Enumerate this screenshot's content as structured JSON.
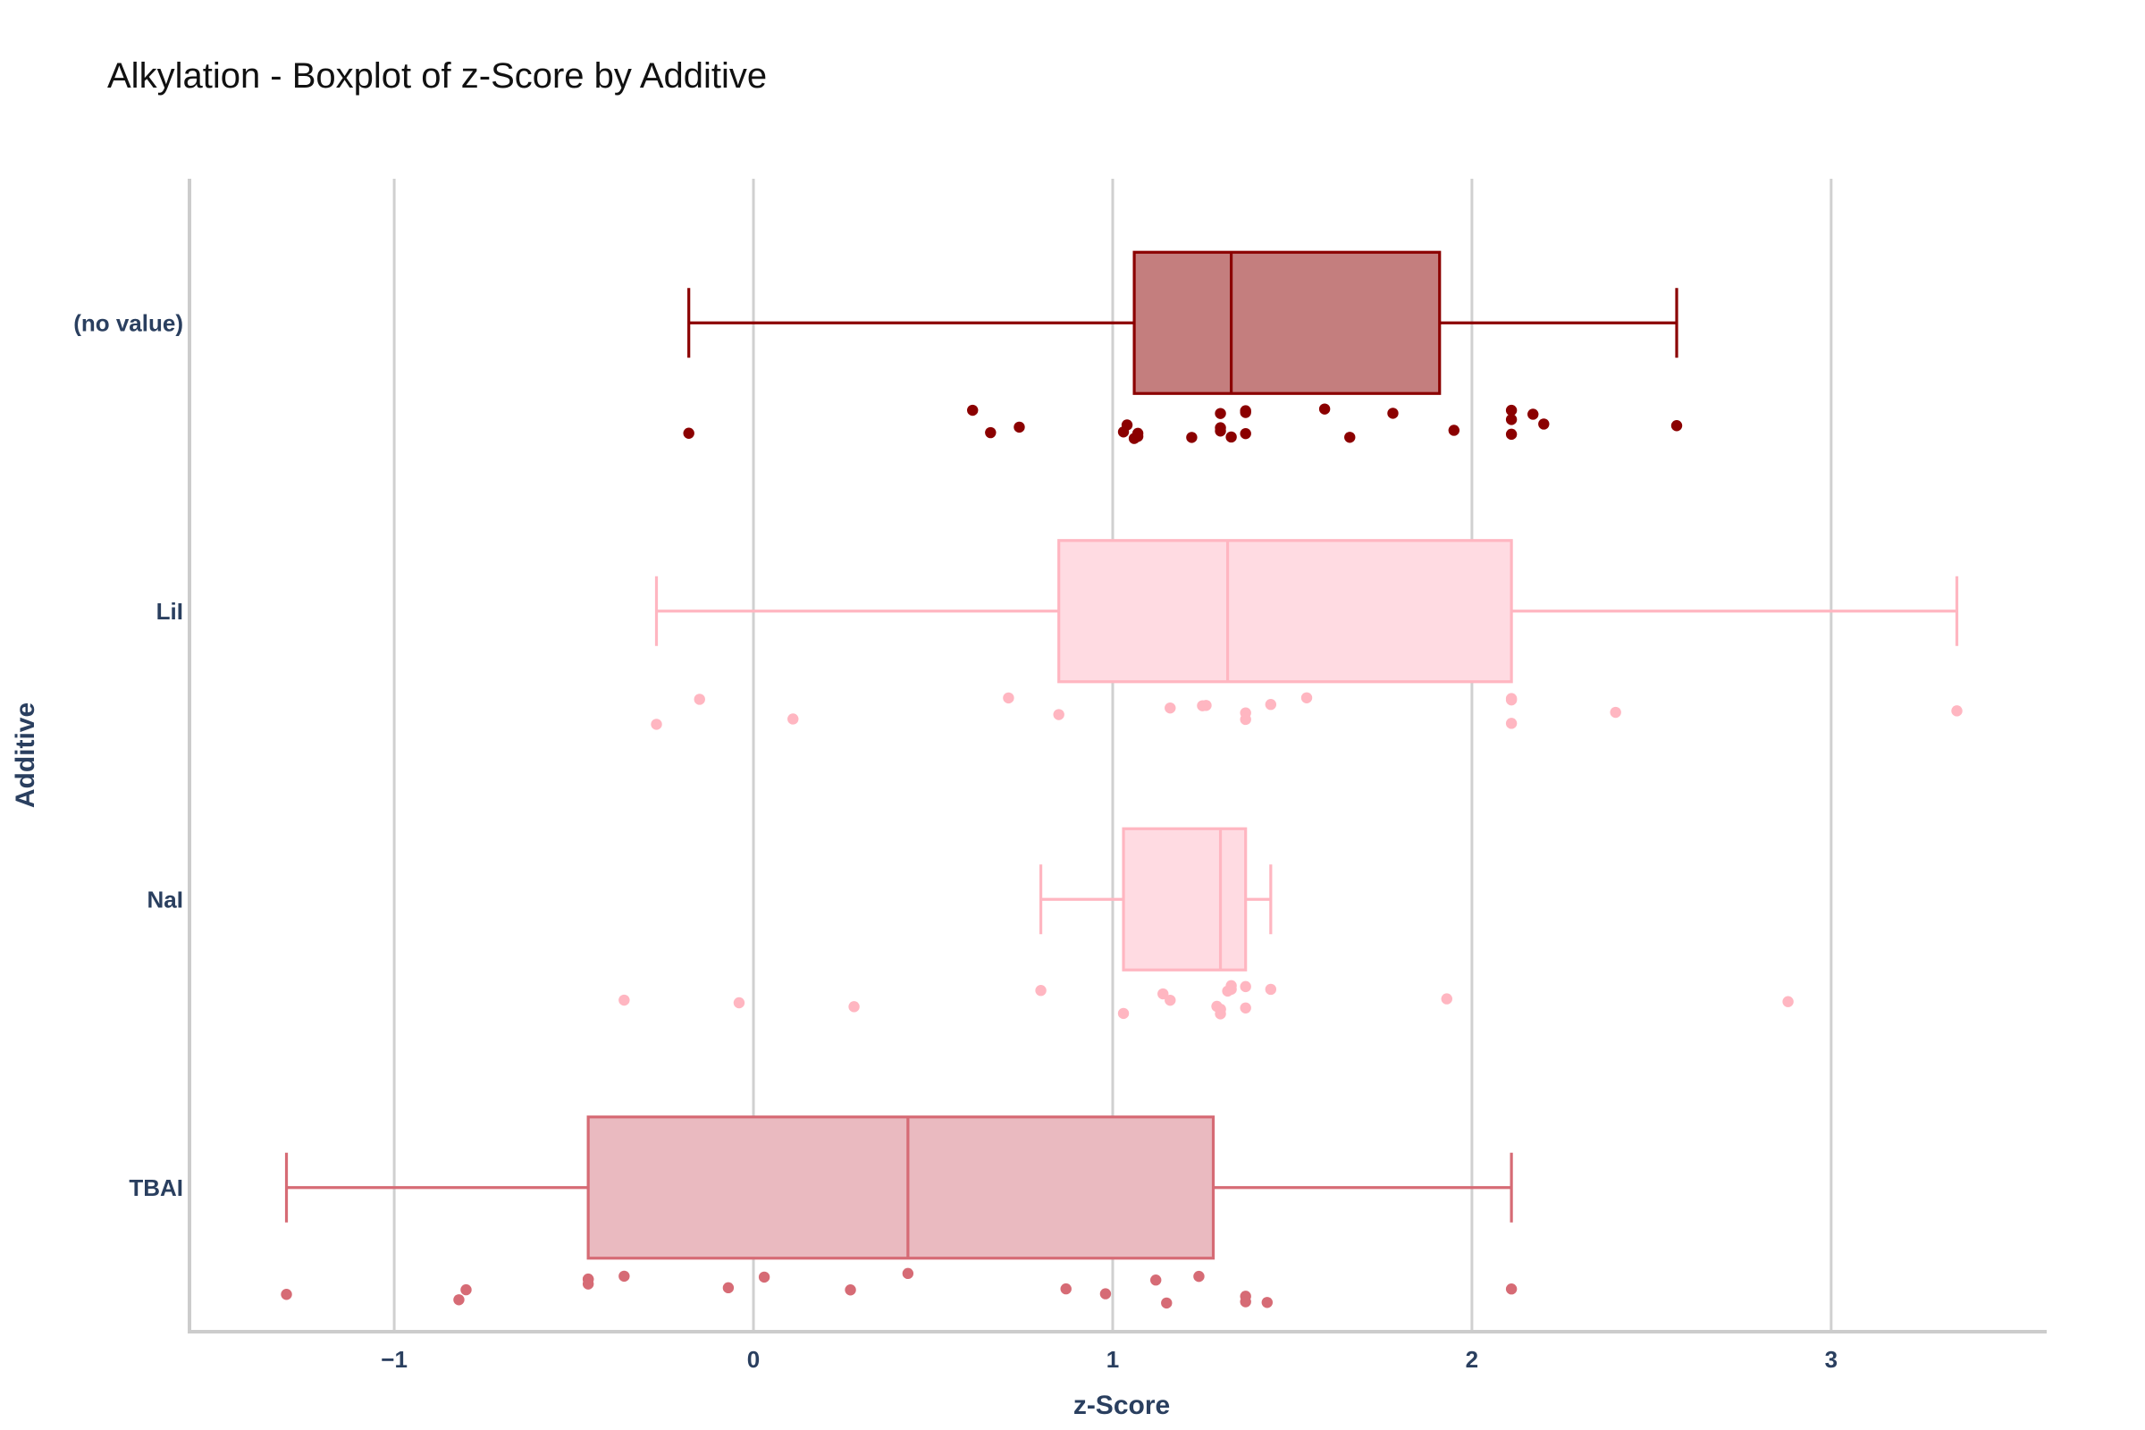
{
  "chart_data": {
    "type": "box",
    "orientation": "horizontal",
    "title": "Alkylation - Boxplot of z-Score by Additive",
    "xlabel": "z-Score",
    "ylabel": "Additive",
    "xlim": [
      -1.57,
      3.6
    ],
    "xticks": [
      -1,
      0,
      1,
      2,
      3
    ],
    "xtick_labels": [
      "−1",
      "0",
      "1",
      "2",
      "3"
    ],
    "grid": "vertical",
    "legend": "none",
    "categories": [
      "(no value)",
      "LiI",
      "NaI",
      "TBAI"
    ],
    "series": [
      {
        "category": "(no value)",
        "color": "#8b0000",
        "fill": "#c47e7e",
        "stats": {
          "min": -0.18,
          "q1": 1.06,
          "median": 1.33,
          "q3": 1.91,
          "max": 2.57
        },
        "points": [
          -0.18,
          0.61,
          0.66,
          0.74,
          1.03,
          1.04,
          1.06,
          1.07,
          1.07,
          1.22,
          1.3,
          1.3,
          1.3,
          1.33,
          1.37,
          1.37,
          1.37,
          1.59,
          1.66,
          1.78,
          1.95,
          2.11,
          2.11,
          2.11,
          2.17,
          2.2,
          2.57
        ]
      },
      {
        "category": "LiI",
        "color": "#ffb6c1",
        "fill": "#ffdbe2",
        "stats": {
          "min": -0.27,
          "q1": 0.85,
          "median": 1.32,
          "q3": 2.11,
          "max": 3.35
        },
        "points": [
          -0.27,
          -0.15,
          0.11,
          0.71,
          0.85,
          1.16,
          1.25,
          1.26,
          1.37,
          1.37,
          1.44,
          1.54,
          2.11,
          2.11,
          2.11,
          2.4,
          3.35
        ]
      },
      {
        "category": "NaI",
        "color": "#ffb6c1",
        "fill": "#ffdbe2",
        "stats": {
          "min": 0.8,
          "q1": 1.03,
          "median": 1.3,
          "q3": 1.37,
          "max": 1.44
        },
        "points": [
          -0.36,
          -0.04,
          0.28,
          0.8,
          1.03,
          1.14,
          1.16,
          1.29,
          1.3,
          1.3,
          1.3,
          1.32,
          1.33,
          1.33,
          1.37,
          1.37,
          1.44,
          1.93,
          2.88
        ]
      },
      {
        "category": "TBAI",
        "color": "#d66b75",
        "fill": "#eabac0",
        "stats": {
          "min": -1.3,
          "q1": -0.46,
          "median": 0.43,
          "q3": 1.28,
          "max": 2.11
        },
        "points": [
          -1.3,
          -0.82,
          -0.8,
          -0.46,
          -0.46,
          -0.46,
          -0.36,
          -0.07,
          0.03,
          0.27,
          0.43,
          0.87,
          0.98,
          1.12,
          1.15,
          1.24,
          1.37,
          1.37,
          1.43,
          2.11
        ]
      }
    ]
  }
}
